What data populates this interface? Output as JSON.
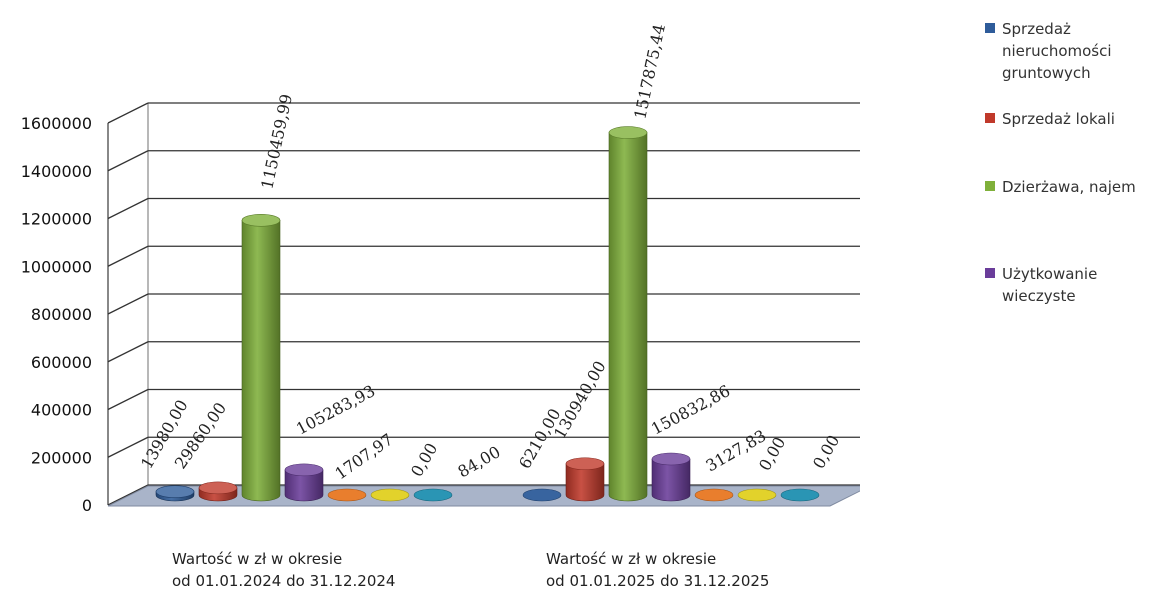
{
  "chart_data": {
    "type": "bar",
    "title": "",
    "xlabel": "",
    "ylabel": "",
    "ylim": [
      0,
      1600000
    ],
    "yticks": [
      "0",
      "200000",
      "400000",
      "600000",
      "800000",
      "1000000",
      "1200000",
      "1400000",
      "1600000"
    ],
    "grid": true,
    "legend_position": "right",
    "categories": [
      "Wartość w zł w okresie od 01.01.2024 do 31.12.2024",
      "Wartość w zł w okresie od 01.01.2025 do 31.12.2025"
    ],
    "category_lines": [
      [
        "Wartość w zł w okresie",
        "od 01.01.2024 do 31.12.2024"
      ],
      [
        "Wartość w zł w okresie",
        "od 01.01.2025 do 31.12.2025"
      ]
    ],
    "series": [
      {
        "name": "Sprzedaż nieruchomości gruntowych",
        "legend_lines": [
          "Sprzedaż",
          "nieruchomości",
          "gruntowych"
        ],
        "color": "#2E5C9A",
        "values": [
          13980.0,
          6210.0
        ],
        "labels": [
          "13980,00",
          "6210,00"
        ]
      },
      {
        "name": "Sprzedaż lokali",
        "legend_lines": [
          "Sprzedaż lokali"
        ],
        "color": "#C0392B",
        "values": [
          29860.0,
          130940.0
        ],
        "labels": [
          "29860,00",
          "130940,00"
        ]
      },
      {
        "name": "Dzierżawa, najem",
        "legend_lines": [
          "Dzierżawa, najem"
        ],
        "color": "#7FB03A",
        "values": [
          1150459.99,
          1517875.44
        ],
        "labels": [
          "1150459,99",
          "1517875,44"
        ]
      },
      {
        "name": "Użytkowanie wieczyste",
        "legend_lines": [
          "Użytkowanie",
          "wieczyste"
        ],
        "color": "#6A3D9A",
        "values": [
          105283.93,
          150832.86
        ],
        "labels": [
          "105283,93",
          "150832,86"
        ]
      },
      {
        "name": "",
        "color": "#E87722",
        "values": [
          1707.97,
          3127.83
        ],
        "labels": [
          "1707,97",
          "3127,83"
        ]
      },
      {
        "name": "",
        "color": "#E0D020",
        "values": [
          0.0,
          0.0
        ],
        "labels": [
          "0,00",
          "0,00"
        ]
      },
      {
        "name": "",
        "color": "#1F8FB0",
        "values": [
          84.0,
          0.0
        ],
        "labels": [
          "84,00",
          "0,00"
        ]
      }
    ]
  }
}
